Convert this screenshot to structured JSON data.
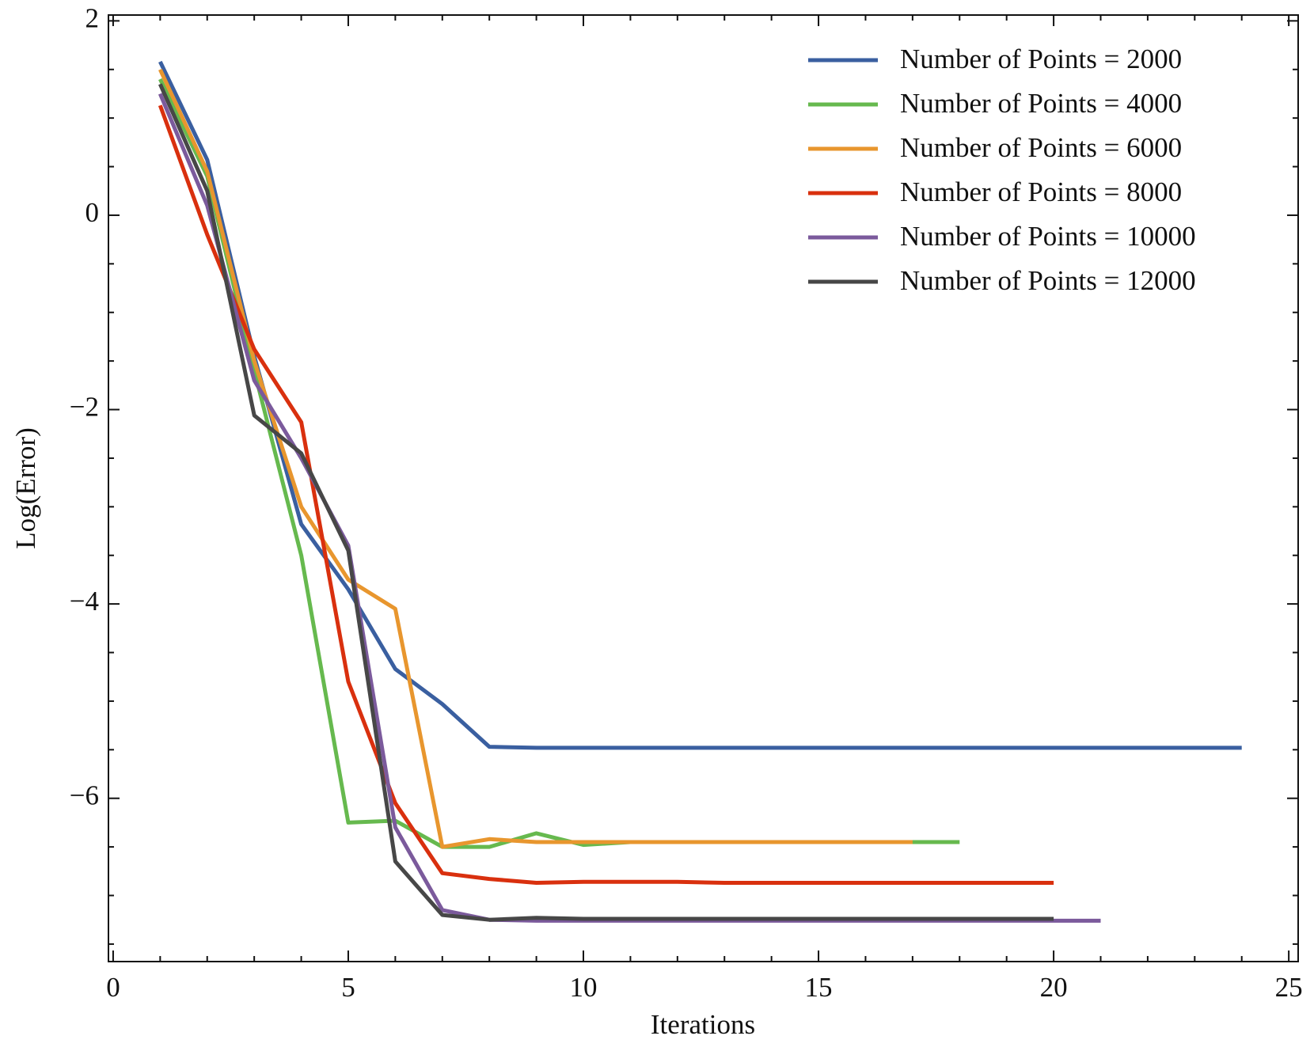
{
  "chart_data": {
    "type": "line",
    "x_label": "Iterations",
    "y_label": "Log(Error)",
    "xlim": [
      -0.1,
      25.2
    ],
    "ylim": [
      -7.68,
      2.06
    ],
    "xticks": [
      0,
      5,
      10,
      15,
      20,
      25
    ],
    "yticks": [
      {
        "value": -6,
        "label": "−6"
      },
      {
        "value": -4,
        "label": "−4"
      },
      {
        "value": -2,
        "label": "−2"
      },
      0,
      2
    ],
    "x_minor_ticks": [
      1,
      2,
      3,
      4,
      6,
      7,
      8,
      9,
      11,
      12,
      13,
      14,
      16,
      17,
      18,
      19,
      21,
      22,
      23,
      24
    ],
    "y_minor_ticks": [
      -7.5,
      -7,
      -6.5,
      -5.5,
      -5,
      -4.5,
      -3.5,
      -3,
      -2.5,
      -1.5,
      -1,
      -0.5,
      0.5,
      1,
      1.5
    ],
    "legend": "upper right",
    "series": [
      {
        "name": "Number of Points = 2000",
        "color": "#3a5fa0",
        "x": [
          1,
          2,
          3,
          4,
          5,
          6,
          7,
          8,
          9,
          10,
          11,
          12,
          13,
          14,
          15,
          16,
          17,
          18,
          19,
          20,
          21,
          22,
          23,
          24
        ],
        "values": [
          1.58,
          0.57,
          -1.45,
          -3.18,
          -3.85,
          -4.67,
          -5.03,
          -5.47,
          -5.48,
          -5.48,
          -5.48,
          -5.48,
          -5.48,
          -5.48,
          -5.48,
          -5.48,
          -5.48,
          -5.48,
          -5.48,
          -5.48,
          -5.48,
          -5.48,
          -5.48,
          -5.48
        ]
      },
      {
        "name": "Number of Points = 4000",
        "color": "#66b94e",
        "x": [
          1,
          2,
          3,
          4,
          5,
          6,
          7,
          8,
          9,
          10,
          11,
          12,
          13,
          14,
          15,
          16,
          17,
          18
        ],
        "values": [
          1.4,
          0.4,
          -1.6,
          -3.5,
          -6.25,
          -6.23,
          -6.5,
          -6.5,
          -6.36,
          -6.48,
          -6.45,
          -6.45,
          -6.45,
          -6.45,
          -6.45,
          -6.45,
          -6.45,
          -6.45
        ]
      },
      {
        "name": "Number of Points = 6000",
        "color": "#e8962e",
        "x": [
          1,
          2,
          3,
          4,
          5,
          6,
          7,
          8,
          9,
          10,
          11,
          12,
          13,
          14,
          15,
          16,
          17
        ],
        "values": [
          1.5,
          0.45,
          -1.5,
          -3.0,
          -3.75,
          -4.05,
          -6.5,
          -6.42,
          -6.45,
          -6.45,
          -6.45,
          -6.45,
          -6.45,
          -6.45,
          -6.45,
          -6.45,
          -6.45
        ]
      },
      {
        "name": "Number of Points = 8000",
        "color": "#d9300e",
        "x": [
          1,
          2,
          3,
          4,
          5,
          6,
          7,
          8,
          9,
          10,
          11,
          12,
          13,
          14,
          15,
          16,
          17,
          18,
          19,
          20
        ],
        "values": [
          1.13,
          -0.2,
          -1.38,
          -2.13,
          -4.8,
          -6.05,
          -6.77,
          -6.83,
          -6.87,
          -6.86,
          -6.86,
          -6.86,
          -6.87,
          -6.87,
          -6.87,
          -6.87,
          -6.87,
          -6.87,
          -6.87,
          -6.87
        ]
      },
      {
        "name": "Number of Points = 10000",
        "color": "#7b5a9c",
        "x": [
          1,
          2,
          3,
          4,
          5,
          6,
          7,
          8,
          9,
          10,
          11,
          12,
          13,
          14,
          15,
          16,
          17,
          18,
          19,
          20,
          21
        ],
        "values": [
          1.25,
          0.1,
          -1.7,
          -2.5,
          -3.4,
          -6.3,
          -7.15,
          -7.25,
          -7.26,
          -7.26,
          -7.26,
          -7.26,
          -7.26,
          -7.26,
          -7.26,
          -7.26,
          -7.26,
          -7.26,
          -7.26,
          -7.26,
          -7.26
        ]
      },
      {
        "name": "Number of Points = 12000",
        "color": "#474747",
        "x": [
          1,
          2,
          3,
          4,
          5,
          6,
          7,
          8,
          9,
          10,
          11,
          12,
          13,
          14,
          15,
          16,
          17,
          18,
          19,
          20
        ],
        "values": [
          1.35,
          0.25,
          -2.06,
          -2.45,
          -3.45,
          -6.65,
          -7.2,
          -7.25,
          -7.23,
          -7.24,
          -7.24,
          -7.24,
          -7.24,
          -7.24,
          -7.24,
          -7.24,
          -7.24,
          -7.24,
          -7.24,
          -7.24
        ]
      }
    ]
  }
}
